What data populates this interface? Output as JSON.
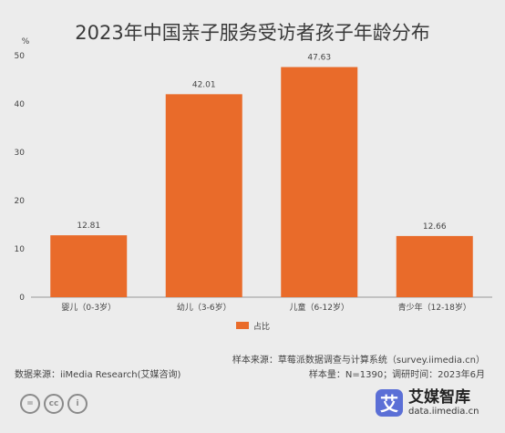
{
  "title": "2023年中国亲子服务受访者孩子年龄分布",
  "chart_data": {
    "type": "bar",
    "categories": [
      "婴儿（0-3岁）",
      "幼儿（3-6岁）",
      "儿童（6-12岁）",
      "青少年（12-18岁）"
    ],
    "values": [
      12.81,
      42.01,
      47.63,
      12.66
    ],
    "value_labels": [
      "12.81",
      "42.01",
      "47.63",
      "12.66"
    ],
    "series_name": "占比",
    "yunit": "%",
    "ylim": [
      0,
      50
    ],
    "yticks": [
      0,
      10,
      20,
      30,
      40,
      50
    ],
    "bar_color": "#e96b2a",
    "legend_position": "bottom-center",
    "grid": false
  },
  "footer": {
    "source_left": "数据来源：iiMedia Research(艾媒咨询)",
    "sample_source": "样本来源：草莓派数据调查与计算系统（survey.iimedia.cn）",
    "sample_info": "样本量：N=1390；调研时间：2023年6月"
  },
  "license_icons": [
    {
      "icon": "equals-icon",
      "glyph": "="
    },
    {
      "icon": "cc-icon",
      "glyph": "cc"
    },
    {
      "icon": "person-icon",
      "glyph": "i"
    }
  ],
  "brand": {
    "logo_glyph": "艾",
    "name": "艾媒智库",
    "url": "data.iimedia.cn"
  }
}
